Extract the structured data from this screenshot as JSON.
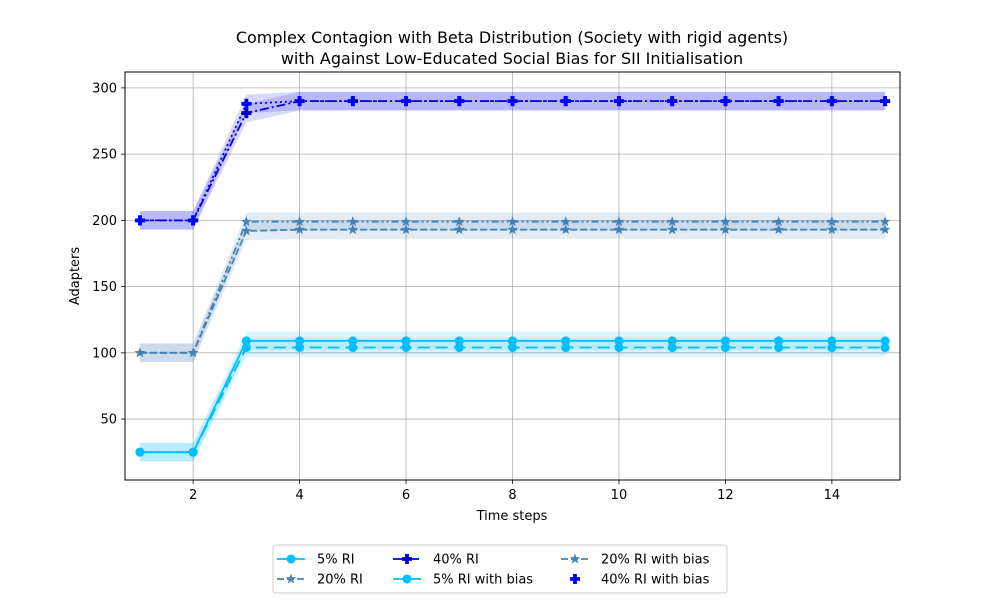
{
  "chart_data": {
    "type": "line",
    "title": "Complex Contagion with Beta Distribution (Society with rigid agents)",
    "subtitle": "with Against Low-Educated Social Bias for SII Initialisation",
    "xlabel": "Time steps",
    "ylabel": "Adapters",
    "xlim": [
      0.72,
      15.28
    ],
    "ylim": [
      4,
      312
    ],
    "xticks": [
      2,
      4,
      6,
      8,
      10,
      12,
      14
    ],
    "yticks": [
      50,
      100,
      150,
      200,
      250,
      300
    ],
    "grid": true,
    "legend_position": "bottom-center",
    "x": [
      1,
      2,
      3,
      4,
      5,
      6,
      7,
      8,
      9,
      10,
      11,
      12,
      13,
      14,
      15
    ],
    "series": [
      {
        "name": "5% RI",
        "color": "#00bfff",
        "linestyle": "solid",
        "marker": "circle",
        "values": [
          25,
          25,
          109,
          109,
          109,
          109,
          109,
          109,
          109,
          109,
          109,
          109,
          109,
          109,
          109
        ],
        "band": 7
      },
      {
        "name": "20% RI",
        "color": "#4682b4",
        "linestyle": "dashed",
        "marker": "star",
        "values": [
          100,
          100,
          192,
          193,
          193,
          193,
          193,
          193,
          193,
          193,
          193,
          193,
          193,
          193,
          193
        ],
        "band": 7
      },
      {
        "name": "40% RI",
        "color": "#0000cd",
        "linestyle": "dashdot",
        "marker": "plus",
        "values": [
          200,
          200,
          281,
          290,
          290,
          290,
          290,
          290,
          290,
          290,
          290,
          290,
          290,
          290,
          290
        ],
        "band": 7
      },
      {
        "name": "5% RI with bias",
        "color": "#00bfff",
        "linestyle": "longdash",
        "marker": "circle",
        "values": [
          25,
          25,
          104,
          104,
          104,
          104,
          104,
          104,
          104,
          104,
          104,
          104,
          104,
          104,
          104
        ],
        "band": 7
      },
      {
        "name": "20% RI with bias",
        "color": "#4682b4",
        "linestyle": "dashdotdot",
        "marker": "star",
        "values": [
          100,
          100,
          199,
          199,
          199,
          199,
          199,
          199,
          199,
          199,
          199,
          199,
          199,
          199,
          199
        ],
        "band": 7
      },
      {
        "name": "40% RI with bias",
        "color": "#0000ff",
        "linestyle": "dotted",
        "marker": "plus",
        "values": [
          200,
          200,
          288,
          290,
          290,
          290,
          290,
          290,
          290,
          290,
          290,
          290,
          290,
          290,
          290
        ],
        "band": 7
      }
    ]
  }
}
